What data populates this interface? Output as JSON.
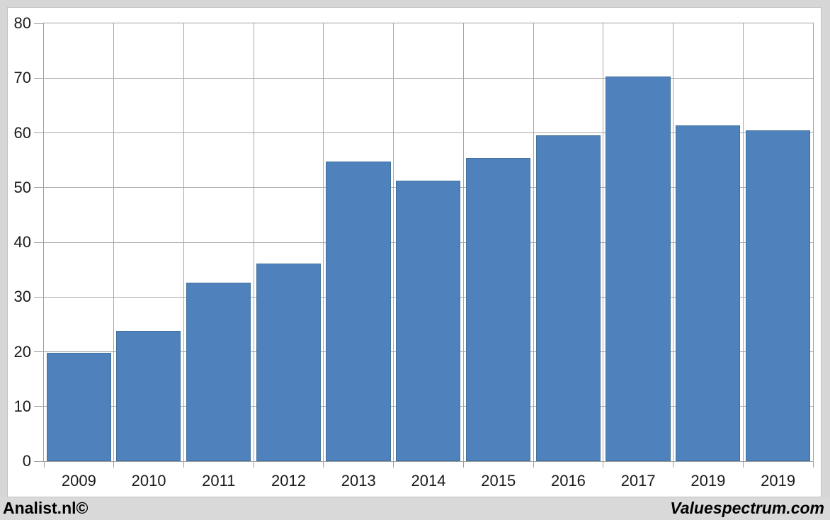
{
  "chart_data": {
    "type": "bar",
    "categories": [
      "2009",
      "2010",
      "2011",
      "2012",
      "2013",
      "2014",
      "2015",
      "2016",
      "2017",
      "2019",
      "2019"
    ],
    "values": [
      19.8,
      23.8,
      32.6,
      36.1,
      54.8,
      51.3,
      55.4,
      59.6,
      70.3,
      61.3,
      60.5
    ],
    "title": "",
    "xlabel": "",
    "ylabel": "",
    "ylim": [
      0,
      80
    ],
    "ytick_step": 10,
    "ytick_labels": [
      "0",
      "10",
      "20",
      "30",
      "40",
      "50",
      "60",
      "70",
      "80"
    ],
    "grid": "both",
    "legend": "none",
    "bar_color": "#4F81BD",
    "bar_border_color": "#41719C",
    "gridline_color": "#A6A6A6",
    "axis_text_color": "#1A1A1A"
  },
  "footer": {
    "left": "Analist.nl©",
    "right": "Valuespectrum.com"
  },
  "colors": {
    "frame_bg": "#D6D6D6",
    "canvas_bg": "#FFFFFF",
    "footer_bg": "#D9D9D9"
  }
}
